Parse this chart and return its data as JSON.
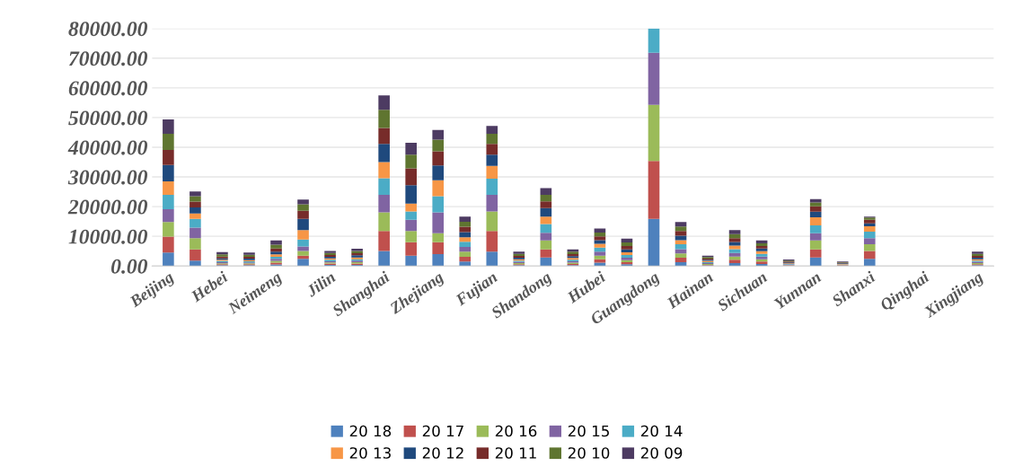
{
  "chart_data": {
    "type": "bar",
    "stacked": true,
    "grid": "y",
    "legend": "bottom",
    "categories": [
      "Beijing",
      null,
      "Hebei",
      null,
      "Neimeng",
      null,
      "Jilin",
      null,
      "Shanghai",
      null,
      "Zhejiang",
      null,
      "Fujian",
      null,
      "Shandong",
      null,
      "Hubei",
      null,
      "Guangdong",
      null,
      "Hainan",
      null,
      "Sichuan",
      null,
      "Yunnan",
      null,
      "Shanxi",
      null,
      "Qinghai",
      null,
      "Xingjiang"
    ],
    "ylim": [
      0,
      80000
    ],
    "yticks": [
      {
        "value": 0,
        "label": "0.00"
      },
      {
        "value": 10000,
        "label": "10000.00"
      },
      {
        "value": 20000,
        "label": "20000.00"
      },
      {
        "value": 30000,
        "label": "30000.00"
      },
      {
        "value": 40000,
        "label": "40000.00"
      },
      {
        "value": 50000,
        "label": "50000.00"
      },
      {
        "value": 60000,
        "label": "60000.00"
      },
      {
        "value": 70000,
        "label": "70000.00"
      },
      {
        "value": 80000,
        "label": "80000.00"
      }
    ],
    "series": [
      {
        "name": "20 18",
        "color": "#4e81bd",
        "values": [
          4500,
          1800,
          300,
          300,
          500,
          2400,
          400,
          400,
          5100,
          3500,
          4000,
          1500,
          4800,
          300,
          2900,
          300,
          1100,
          600,
          15900,
          1300,
          200,
          1000,
          700,
          100,
          2900,
          100,
          2400,
          0,
          0,
          0,
          300
        ]
      },
      {
        "name": "20 17",
        "color": "#c0504d",
        "values": [
          5400,
          3800,
          300,
          300,
          600,
          1100,
          400,
          400,
          6700,
          4500,
          4000,
          1600,
          7000,
          300,
          2700,
          400,
          1200,
          700,
          19500,
          1500,
          200,
          1100,
          800,
          100,
          2700,
          100,
          2700,
          0,
          0,
          0,
          300
        ]
      },
      {
        "name": "20 16",
        "color": "#9bbb59",
        "values": [
          4900,
          3800,
          300,
          300,
          600,
          1600,
          400,
          500,
          6300,
          3800,
          3000,
          1700,
          6600,
          400,
          3000,
          400,
          1200,
          700,
          18900,
          1400,
          300,
          1100,
          800,
          100,
          3000,
          100,
          2200,
          0,
          0,
          0,
          400
        ]
      },
      {
        "name": "20 15",
        "color": "#8064a2",
        "values": [
          4300,
          3500,
          400,
          300,
          700,
          1500,
          400,
          500,
          5900,
          3800,
          7100,
          1600,
          5600,
          400,
          2600,
          500,
          1300,
          800,
          17500,
          1500,
          300,
          1200,
          900,
          200,
          2400,
          100,
          2100,
          0,
          0,
          0,
          400
        ]
      },
      {
        "name": "20 14",
        "color": "#4bacc6",
        "values": [
          4900,
          3000,
          400,
          400,
          700,
          2300,
          500,
          500,
          5600,
          2800,
          5400,
          1800,
          5400,
          400,
          2900,
          500,
          1400,
          900,
          8200,
          1600,
          300,
          1300,
          900,
          200,
          2700,
          100,
          2200,
          0,
          0,
          0,
          400
        ]
      },
      {
        "name": "20 13",
        "color": "#f79646",
        "values": [
          4500,
          1800,
          400,
          400,
          800,
          3200,
          500,
          600,
          5400,
          2600,
          5400,
          1500,
          4300,
          500,
          2500,
          600,
          1300,
          900,
          0,
          1400,
          400,
          1200,
          900,
          200,
          2700,
          200,
          1800,
          0,
          0,
          0,
          500
        ]
      },
      {
        "name": "20 12",
        "color": "#1f497d",
        "values": [
          5500,
          2000,
          500,
          500,
          900,
          3800,
          500,
          700,
          6100,
          6200,
          5000,
          1700,
          3800,
          500,
          2900,
          600,
          1200,
          1000,
          0,
          1500,
          400,
          1200,
          900,
          300,
          1900,
          200,
          1000,
          0,
          0,
          0,
          500
        ]
      },
      {
        "name": "20 11",
        "color": "#772c2a",
        "values": [
          5100,
          2000,
          600,
          600,
          1100,
          2700,
          600,
          700,
          5400,
          5700,
          4700,
          1800,
          3600,
          600,
          2300,
          700,
          1300,
          1100,
          0,
          1600,
          400,
          1300,
          800,
          300,
          1800,
          200,
          1200,
          0,
          0,
          0,
          600
        ]
      },
      {
        "name": "20 10",
        "color": "#5f7530",
        "values": [
          5400,
          1800,
          700,
          700,
          1300,
          2200,
          700,
          800,
          6100,
          4600,
          4000,
          1700,
          3400,
          700,
          2200,
          800,
          1300,
          1200,
          0,
          1500,
          500,
          1300,
          900,
          300,
          1300,
          200,
          700,
          0,
          0,
          0,
          700
        ]
      },
      {
        "name": "20 09",
        "color": "#4d3b62",
        "values": [
          4900,
          1600,
          800,
          700,
          1400,
          1600,
          700,
          700,
          4900,
          4000,
          3200,
          1700,
          2700,
          700,
          2200,
          800,
          1300,
          1300,
          0,
          1500,
          500,
          1400,
          1000,
          400,
          1100,
          200,
          300,
          0,
          0,
          0,
          700
        ]
      }
    ]
  }
}
